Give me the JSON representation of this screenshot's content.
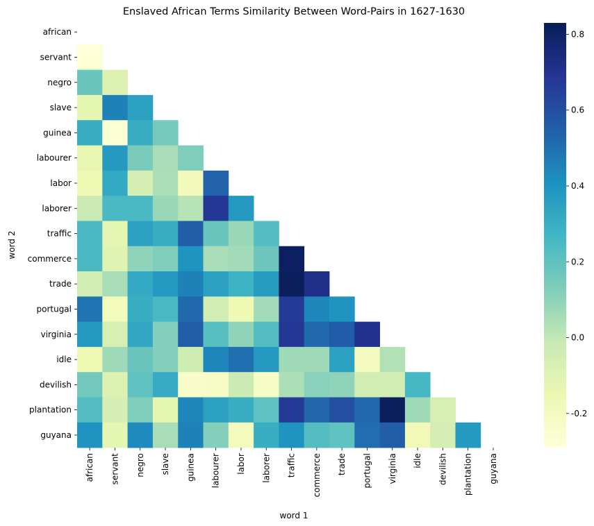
{
  "chart_data": {
    "type": "heatmap",
    "title": "Enslaved African Terms Similarity Between Word-Pairs in 1627-1630",
    "xlabel": "word 1",
    "ylabel": "word 2",
    "x_categories": [
      "african",
      "servant",
      "negro",
      "slave",
      "guinea",
      "labourer",
      "labor",
      "laborer",
      "traffic",
      "commerce",
      "trade",
      "portugal",
      "virginia",
      "idle",
      "devilish",
      "plantation",
      "guyana"
    ],
    "y_categories": [
      "african",
      "servant",
      "negro",
      "slave",
      "guinea",
      "labourer",
      "labor",
      "laborer",
      "traffic",
      "commerce",
      "trade",
      "portugal",
      "virginia",
      "idle",
      "devilish",
      "plantation",
      "guyana"
    ],
    "mask": "upper triangle including diagonal",
    "colormap": "YlGnBu",
    "vmin": -0.29,
    "vmax": 0.83,
    "colorbar_ticks": [
      "-0.2",
      "0.0",
      "0.2",
      "0.4",
      "0.6",
      "0.8"
    ],
    "colorbar_tick_values": [
      -0.2,
      0.0,
      0.2,
      0.4,
      0.6,
      0.8
    ],
    "values": [
      [],
      [
        -0.28
      ],
      [
        0.18,
        -0.09
      ],
      [
        -0.12,
        0.45,
        0.35
      ],
      [
        0.3,
        -0.27,
        0.3,
        0.15
      ],
      [
        -0.13,
        0.38,
        0.14,
        0.05,
        0.13
      ],
      [
        -0.16,
        0.32,
        -0.06,
        0.04,
        -0.18,
        0.54
      ],
      [
        -0.02,
        0.25,
        0.25,
        0.08,
        0.02,
        0.68,
        0.38
      ],
      [
        0.25,
        -0.12,
        0.35,
        0.3,
        0.55,
        0.18,
        0.08,
        0.23
      ],
      [
        0.25,
        -0.1,
        0.1,
        0.13,
        0.4,
        0.05,
        0.06,
        0.17,
        0.81
      ],
      [
        -0.05,
        0.05,
        0.32,
        0.38,
        0.45,
        0.35,
        0.28,
        0.37,
        0.82,
        0.72
      ],
      [
        0.49,
        -0.19,
        0.3,
        0.25,
        0.52,
        -0.05,
        -0.16,
        0.06,
        0.67,
        0.44,
        0.4
      ],
      [
        0.38,
        -0.07,
        0.33,
        0.12,
        0.55,
        0.22,
        0.1,
        0.23,
        0.68,
        0.52,
        0.56,
        0.71
      ],
      [
        -0.16,
        0.07,
        0.18,
        0.12,
        -0.04,
        0.44,
        0.5,
        0.38,
        0.07,
        0.07,
        0.35,
        -0.2,
        0.03
      ],
      [
        0.16,
        -0.09,
        0.2,
        0.31,
        -0.23,
        -0.22,
        -0.03,
        -0.22,
        0.04,
        0.11,
        0.1,
        -0.05,
        -0.05,
        0.26
      ],
      [
        0.23,
        -0.06,
        0.13,
        -0.12,
        0.44,
        0.35,
        0.3,
        0.2,
        0.67,
        0.53,
        0.6,
        0.52,
        0.82,
        0.07,
        -0.07
      ],
      [
        0.4,
        -0.12,
        0.43,
        0.05,
        0.45,
        0.12,
        -0.19,
        0.3,
        0.4,
        0.23,
        0.2,
        0.51,
        0.55,
        -0.17,
        -0.06,
        0.38
      ]
    ]
  }
}
